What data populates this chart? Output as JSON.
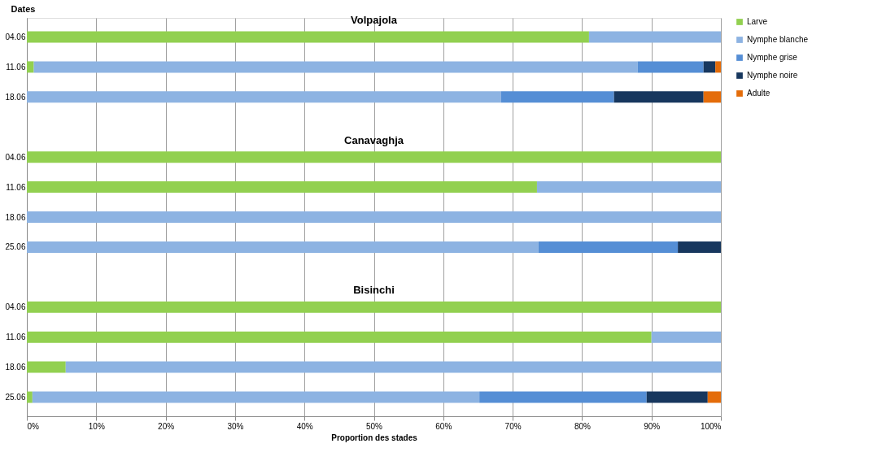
{
  "chart_data": {
    "type": "bar",
    "orientation": "horizontal",
    "stacked": true,
    "xlabel": "Proportion des stades",
    "ylabel": "Dates",
    "categories": [
      "04.06",
      "11.06",
      "18.06",
      null,
      "04.06",
      "11.06",
      "18.06",
      "25.06",
      null,
      "04.06",
      "11.06",
      "18.06",
      "25.06"
    ],
    "series": [
      {
        "name": "Larve",
        "color": "#92d050",
        "values": [
          81,
          1,
          0,
          null,
          100,
          73.5,
          0,
          0,
          null,
          100,
          90,
          5.6,
          0.8
        ]
      },
      {
        "name": "Nymphe blanche",
        "color": "#8db3e2",
        "values": [
          19,
          87,
          68.3,
          null,
          0,
          26.5,
          100,
          73.7,
          null,
          0,
          10,
          94.4,
          64.4
        ]
      },
      {
        "name": "Nymphe grise",
        "color": "#558ed5",
        "values": [
          0,
          9.5,
          16.3,
          null,
          0,
          0,
          0,
          20.1,
          null,
          0,
          0,
          0,
          24.1
        ]
      },
      {
        "name": "Nymphe noire",
        "color": "#17375e",
        "values": [
          0,
          1.7,
          12.9,
          null,
          0,
          0,
          0,
          6.2,
          null,
          0,
          0,
          0,
          8.8
        ]
      },
      {
        "name": "Adulte",
        "color": "#e46c0a",
        "values": [
          0,
          0.8,
          2.5,
          null,
          0,
          0,
          0,
          0,
          null,
          0,
          0,
          0,
          1.9
        ]
      }
    ],
    "annotations": [
      "Volpajola",
      "Canavaghja",
      "Bisinchi"
    ],
    "xlim": [
      0,
      100
    ],
    "xticks": [
      {
        "value": 0,
        "label": "0%"
      },
      {
        "value": 10,
        "label": "10%"
      },
      {
        "value": 20,
        "label": "20%"
      },
      {
        "value": 30,
        "label": "30%"
      },
      {
        "value": 40,
        "label": "40%"
      },
      {
        "value": 50,
        "label": "50%"
      },
      {
        "value": 60,
        "label": "60%"
      },
      {
        "value": 70,
        "label": "70%"
      },
      {
        "value": 80,
        "label": "80%"
      },
      {
        "value": 90,
        "label": "90%"
      },
      {
        "value": 100,
        "label": "100%"
      }
    ],
    "grid": "x",
    "legend": "right"
  }
}
